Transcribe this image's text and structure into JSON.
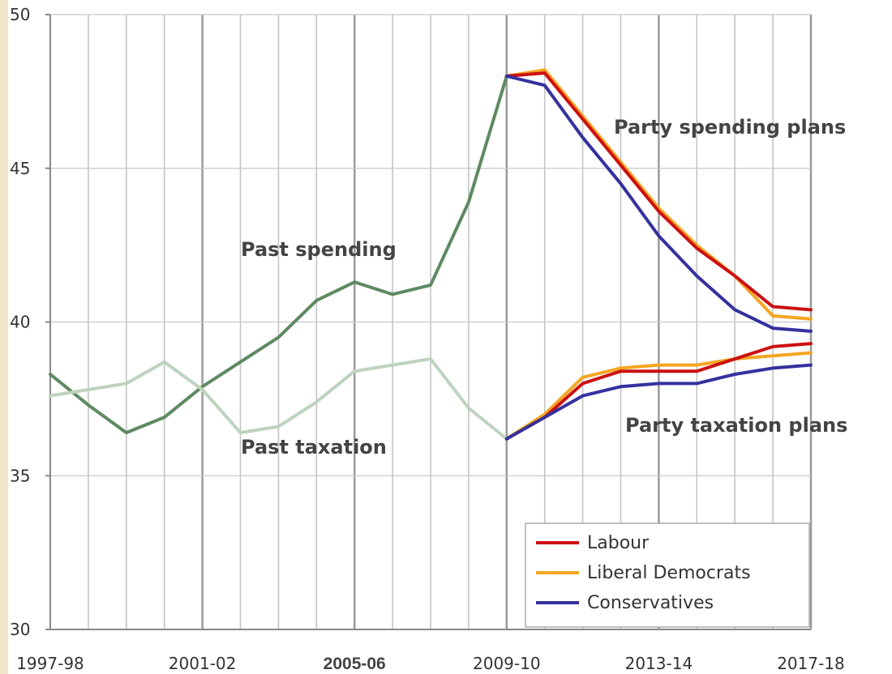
{
  "chart_data": {
    "type": "line",
    "title": "",
    "xlabel": "",
    "ylabel": "",
    "ylim": [
      30,
      50
    ],
    "yticks": [
      "30",
      "35",
      "40",
      "45",
      "50"
    ],
    "x_tick_labels": [
      {
        "label": "1997-98",
        "index": 0
      },
      {
        "label": "2001-02",
        "index": 4
      },
      {
        "label": "2005-06",
        "index": 8
      },
      {
        "label": "2009-10",
        "index": 12
      },
      {
        "label": "2013-14",
        "index": 16
      },
      {
        "label": "2017-18",
        "index": 20
      }
    ],
    "years": [
      "1997-98",
      "1998-99",
      "1999-00",
      "2000-01",
      "2001-02",
      "2002-03",
      "2003-04",
      "2004-05",
      "2005-06",
      "2006-07",
      "2007-08",
      "2008-09",
      "2009-10",
      "2010-11",
      "2011-12",
      "2012-13",
      "2013-14",
      "2014-15",
      "2015-16",
      "2016-17",
      "2017-18"
    ],
    "grid": true,
    "legend_position": "bottom-right",
    "annotations": {
      "past_spending": "Past spending",
      "past_taxation": "Past taxation",
      "party_spending": "Party spending plans",
      "party_taxation": "Party taxation plans"
    },
    "series": [
      {
        "key": "past-spending",
        "color": "#5e8a62",
        "start_index": 0,
        "values": [
          38.3,
          37.3,
          36.4,
          36.9,
          37.9,
          38.7,
          39.5,
          40.7,
          41.3,
          40.9,
          41.2,
          43.9,
          48.0
        ]
      },
      {
        "key": "past-taxation",
        "color": "#bed3be",
        "start_index": 0,
        "values": [
          37.6,
          37.8,
          38.0,
          38.7,
          37.8,
          36.4,
          36.6,
          37.4,
          38.4,
          38.6,
          38.8,
          37.2,
          36.2
        ]
      },
      {
        "key": "lib-dem-spending",
        "name": "Liberal Democrats",
        "color": "#f5a623",
        "start_index": 12,
        "values": [
          48.0,
          48.2,
          46.7,
          45.2,
          43.7,
          42.5,
          41.5,
          40.2,
          40.1
        ]
      },
      {
        "key": "labour-spending",
        "name": "Labour",
        "color": "#cc1111",
        "start_index": 12,
        "values": [
          48.0,
          48.1,
          46.6,
          45.1,
          43.6,
          42.4,
          41.5,
          40.5,
          40.4
        ]
      },
      {
        "key": "conservatives-spending",
        "name": "Conservatives",
        "color": "#34329e",
        "start_index": 12,
        "values": [
          48.0,
          47.7,
          46.0,
          44.5,
          42.8,
          41.5,
          40.4,
          39.8,
          39.7
        ]
      },
      {
        "key": "lib-dem-taxation",
        "name": "Liberal Democrats",
        "color": "#f5a623",
        "start_index": 12,
        "values": [
          36.2,
          37.0,
          38.2,
          38.5,
          38.6,
          38.6,
          38.8,
          38.9,
          39.0
        ]
      },
      {
        "key": "labour-taxation",
        "name": "Labour",
        "color": "#cc1111",
        "start_index": 12,
        "values": [
          36.2,
          36.9,
          38.0,
          38.4,
          38.4,
          38.4,
          38.8,
          39.2,
          39.3
        ]
      },
      {
        "key": "conservatives-taxation",
        "name": "Conservatives",
        "color": "#34329e",
        "start_index": 12,
        "values": [
          36.2,
          36.9,
          37.6,
          37.9,
          38.0,
          38.0,
          38.3,
          38.5,
          38.6
        ]
      }
    ],
    "legend": [
      {
        "label": "Labour",
        "color": "#cc1111"
      },
      {
        "label": "Liberal Democrats",
        "color": "#f5a623"
      },
      {
        "label": "Conservatives",
        "color": "#34329e"
      }
    ]
  }
}
